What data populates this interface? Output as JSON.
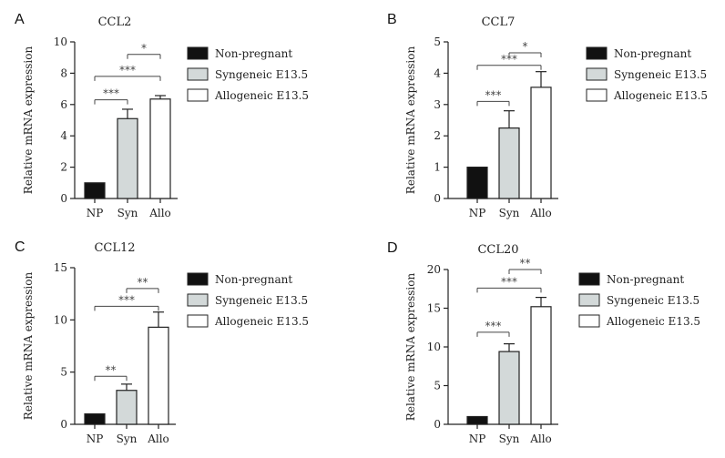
{
  "chart_data": [
    {
      "panel": "A",
      "type": "bar",
      "title": "CCL2",
      "ylabel": "Relative mRNA expression",
      "categories": [
        "NP",
        "Syn",
        "Allo"
      ],
      "values": [
        1.0,
        5.1,
        6.35
      ],
      "errors": [
        0,
        0.6,
        0.22
      ],
      "ylim": [
        0,
        10
      ],
      "yticks": [
        "0",
        "2",
        "4",
        "6",
        "8",
        "10"
      ],
      "legend": [
        "Non-pregnant",
        "Syngeneic E13.5",
        "Allogeneic E13.5"
      ],
      "significance": [
        {
          "from": 1,
          "to": 2,
          "label": "*",
          "y": 9.2
        },
        {
          "from": 0,
          "to": 2,
          "label": "***",
          "y": 7.8
        },
        {
          "from": 0,
          "to": 1,
          "label": "***",
          "y": 6.3
        }
      ]
    },
    {
      "panel": "B",
      "type": "bar",
      "title": "CCL7",
      "ylabel": "Relative mRNA expression",
      "categories": [
        "NP",
        "Syn",
        "Allo"
      ],
      "values": [
        1.0,
        2.25,
        3.55
      ],
      "errors": [
        0,
        0.55,
        0.5
      ],
      "ylim": [
        0,
        5
      ],
      "yticks": [
        "0",
        "1",
        "2",
        "3",
        "4",
        "5"
      ],
      "legend": [
        "Non-pregnant",
        "Syngeneic  E13.5",
        "Allogeneic E13.5"
      ],
      "significance": [
        {
          "from": 1,
          "to": 2,
          "label": "*",
          "y": 4.65
        },
        {
          "from": 0,
          "to": 2,
          "label": "***",
          "y": 4.25
        },
        {
          "from": 0,
          "to": 1,
          "label": "***",
          "y": 3.1
        }
      ]
    },
    {
      "panel": "C",
      "type": "bar",
      "title": "CCL12",
      "ylabel": "Relative mRNA expression",
      "categories": [
        "NP",
        "Syn",
        "Allo"
      ],
      "values": [
        1.0,
        3.25,
        9.3
      ],
      "errors": [
        0,
        0.6,
        1.45
      ],
      "ylim": [
        0,
        15
      ],
      "yticks": [
        "0",
        "5",
        "10",
        "15"
      ],
      "legend": [
        "Non-pregnant",
        "Syngeneic  E13.5",
        "Allogeneic E13.5"
      ],
      "significance": [
        {
          "from": 1,
          "to": 2,
          "label": "**",
          "y": 13.0
        },
        {
          "from": 0,
          "to": 2,
          "label": "***",
          "y": 11.3
        },
        {
          "from": 0,
          "to": 1,
          "label": "**",
          "y": 4.6
        }
      ]
    },
    {
      "panel": "D",
      "type": "bar",
      "title": "CCL20",
      "ylabel": "Relative mRNA expression",
      "categories": [
        "NP",
        "Syn",
        "Allo"
      ],
      "values": [
        1.0,
        9.4,
        15.2
      ],
      "errors": [
        0,
        1.0,
        1.2
      ],
      "ylim": [
        0,
        20
      ],
      "yticks": [
        "0",
        "5",
        "10",
        "15",
        "20"
      ],
      "legend": [
        "Non-pregnant",
        "Syngeneic  E13.5",
        "Allogeneic E13.5"
      ],
      "significance": [
        {
          "from": 1,
          "to": 2,
          "label": "**",
          "y": 20.0
        },
        {
          "from": 0,
          "to": 2,
          "label": "***",
          "y": 17.6
        },
        {
          "from": 0,
          "to": 1,
          "label": "***",
          "y": 11.9
        }
      ]
    }
  ],
  "colors": {
    "np": "#111111",
    "syn": "#d3d9d9",
    "allo": "#ffffff",
    "axis": "#222222",
    "bracket": "#444444"
  }
}
